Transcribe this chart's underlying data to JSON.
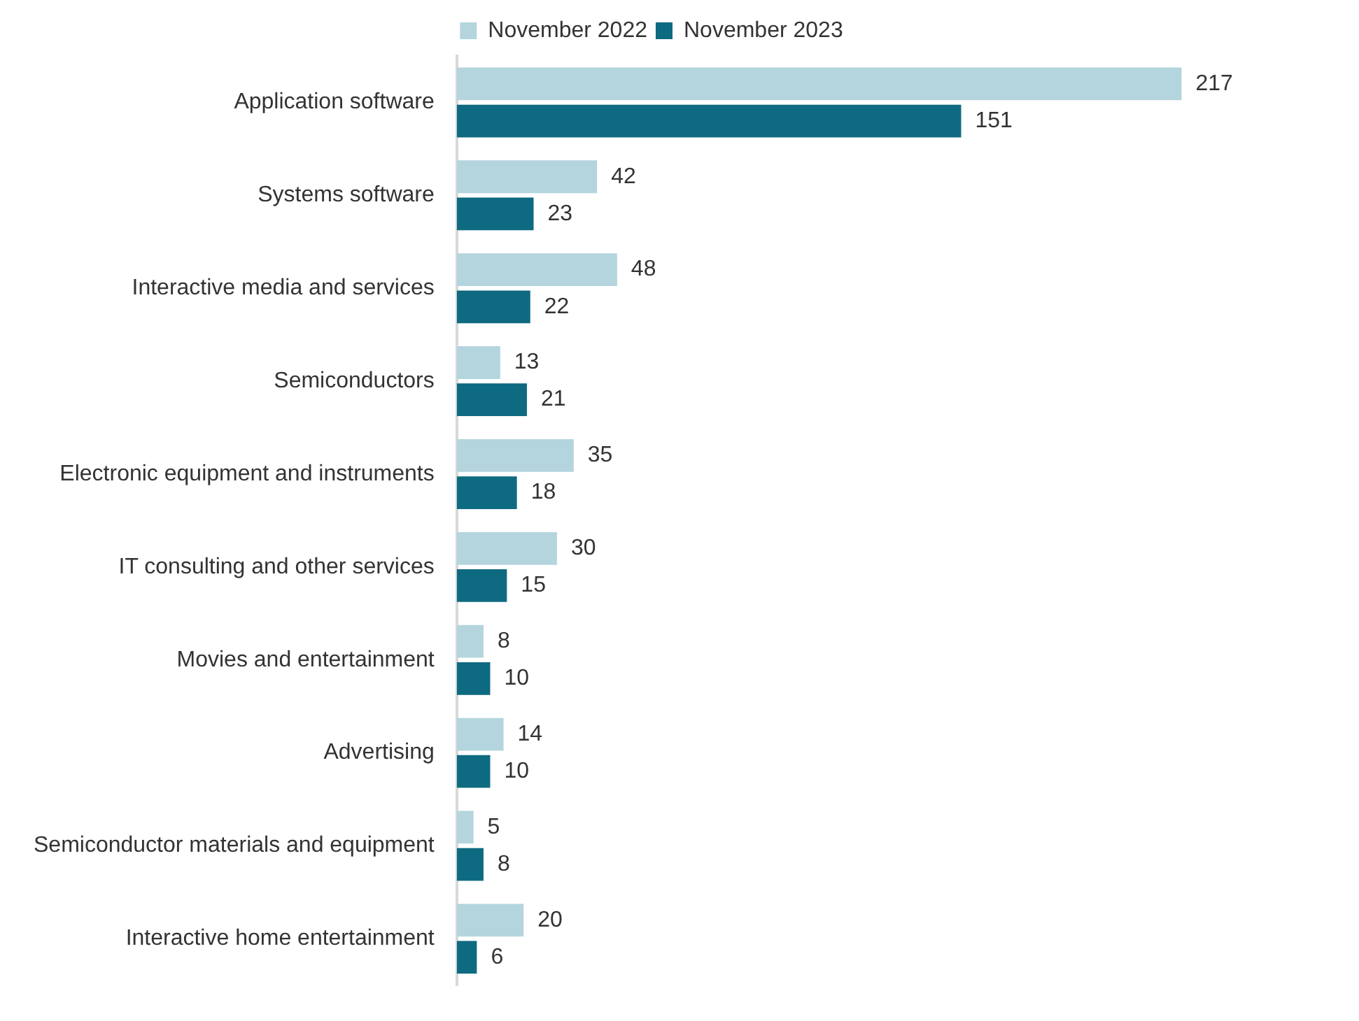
{
  "chart_data": {
    "type": "bar",
    "orientation": "horizontal",
    "legend": "top",
    "grid": false,
    "data_labels": true,
    "categories": [
      "Application software",
      "Systems software",
      "Interactive media and services",
      "Semiconductors",
      "Electronic equipment and instruments",
      "IT consulting and other services",
      "Movies and entertainment",
      "Advertising",
      "Semiconductor materials and equipment",
      "Interactive home entertainment"
    ],
    "series": [
      {
        "name": "November 2022",
        "color": "#b4d5dd",
        "values": [
          217,
          42,
          48,
          13,
          35,
          30,
          8,
          14,
          5,
          20
        ]
      },
      {
        "name": "November 2023",
        "color": "#0e6a80",
        "values": [
          151,
          23,
          22,
          21,
          18,
          15,
          10,
          10,
          8,
          6
        ]
      }
    ]
  }
}
